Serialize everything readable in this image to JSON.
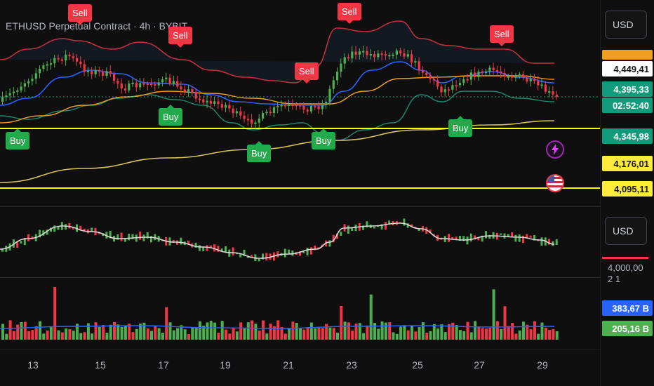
{
  "header": {
    "symbol_title": "ETHUSD Perpetual Contract · 4h · BYBIT"
  },
  "colors": {
    "up": "#4caf50",
    "down": "#f23645",
    "band": "#c0313f",
    "band_lower": "#1f8a70",
    "ma_fast": "#d9d9d9",
    "ma_blue": "#2962ff",
    "ma_orange": "#f0a020",
    "ma_yellow": "#d8c35a",
    "hline": "#ffff00",
    "background": "#0f0f0f"
  },
  "price_axis": {
    "currency_label": "USD",
    "tags": [
      {
        "label": "4,449,41",
        "bg": "#ffffff",
        "fg": "#131313"
      },
      {
        "label": "4,395,33",
        "bg": "#129b7a",
        "fg": "#ffffff"
      },
      {
        "label": "02:52:40",
        "bg": "#129b7a",
        "fg": "#ffffff"
      },
      {
        "label": "4,345,98",
        "bg": "#129b7a",
        "fg": "#ffffff"
      },
      {
        "label": "4,176,01",
        "bg": "#ffeb3b",
        "fg": "#131313"
      },
      {
        "label": "4,095,11",
        "bg": "#ffeb3b",
        "fg": "#131313"
      }
    ]
  },
  "signals": [
    {
      "label": "Sell",
      "kind": "sell"
    },
    {
      "label": "Sell",
      "kind": "sell"
    },
    {
      "label": "Sell",
      "kind": "sell"
    },
    {
      "label": "Sell",
      "kind": "sell"
    },
    {
      "label": "Sell",
      "kind": "sell"
    },
    {
      "label": "Buy",
      "kind": "buy"
    },
    {
      "label": "Buy",
      "kind": "buy"
    },
    {
      "label": "Buy",
      "kind": "buy"
    },
    {
      "label": "Buy",
      "kind": "buy"
    },
    {
      "label": "Buy",
      "kind": "buy"
    }
  ],
  "oscillator_axis": {
    "currency_label": "USD",
    "level_label": "4,000,00"
  },
  "volume_axis": {
    "scale_label": "2 1",
    "tags": [
      {
        "label": "383,67 B",
        "bg": "#2962ff",
        "fg": "#ffffff"
      },
      {
        "label": "205,16 B",
        "bg": "#4caf50",
        "fg": "#ffffff"
      }
    ]
  },
  "time_axis": {
    "labels": [
      "13",
      "15",
      "17",
      "19",
      "21",
      "23",
      "25",
      "27",
      "29"
    ]
  },
  "icons": [
    "lightning-icon",
    "us-flag-icon"
  ]
}
